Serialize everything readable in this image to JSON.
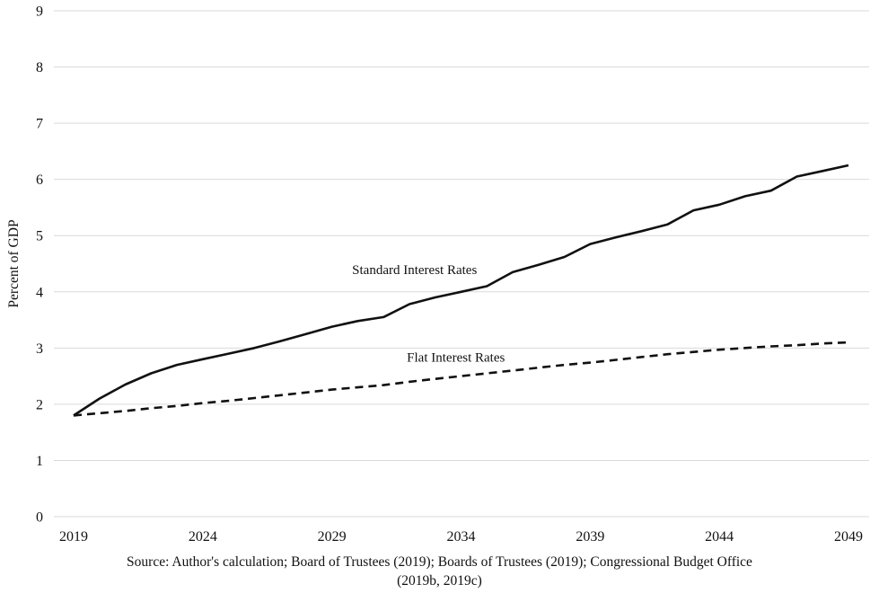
{
  "chart_data": {
    "type": "line",
    "title": "",
    "xlabel": "",
    "ylabel": "Percent of GDP",
    "x_range": [
      2019,
      2049
    ],
    "x_ticks": [
      2019,
      2024,
      2029,
      2034,
      2039,
      2044,
      2049
    ],
    "ylim": [
      0,
      9
    ],
    "y_ticks": [
      0,
      1,
      2,
      3,
      4,
      5,
      6,
      7,
      8,
      9
    ],
    "grid": true,
    "legend_position": "inline-annotations",
    "x": [
      2019,
      2020,
      2021,
      2022,
      2023,
      2024,
      2025,
      2026,
      2027,
      2028,
      2029,
      2030,
      2031,
      2032,
      2033,
      2034,
      2035,
      2036,
      2037,
      2038,
      2039,
      2040,
      2041,
      2042,
      2043,
      2044,
      2045,
      2046,
      2047,
      2048,
      2049
    ],
    "series": [
      {
        "name": "Standard Interest Rates",
        "style": "solid",
        "values": [
          1.8,
          2.1,
          2.35,
          2.55,
          2.7,
          2.8,
          2.9,
          3.0,
          3.12,
          3.25,
          3.38,
          3.48,
          3.55,
          3.78,
          3.9,
          4.0,
          4.1,
          4.35,
          4.48,
          4.62,
          4.85,
          4.97,
          5.08,
          5.2,
          5.45,
          5.55,
          5.7,
          5.8,
          6.05,
          6.15,
          6.25
        ]
      },
      {
        "name": "Flat Interest Rates",
        "style": "dashed",
        "values": [
          1.8,
          1.84,
          1.88,
          1.93,
          1.97,
          2.02,
          2.06,
          2.11,
          2.16,
          2.21,
          2.26,
          2.3,
          2.34,
          2.4,
          2.45,
          2.5,
          2.55,
          2.6,
          2.65,
          2.7,
          2.74,
          2.79,
          2.84,
          2.89,
          2.93,
          2.97,
          3.0,
          3.03,
          3.05,
          3.08,
          3.1
        ]
      }
    ],
    "annotations": [
      {
        "text": "Standard Interest Rates",
        "x": 2032.2,
        "y": 4.32
      },
      {
        "text": "Flat Interest Rates",
        "x": 2033.8,
        "y": 2.76
      }
    ],
    "line_color": "#111111",
    "grid_color": "#d9d9d9",
    "tick_color": "#111111"
  },
  "source_note": {
    "line1": "Source: Author's calculation; Board of Trustees (2019); Boards of Trustees (2019); Congressional Budget Office",
    "line2": "(2019b, 2019c)"
  }
}
